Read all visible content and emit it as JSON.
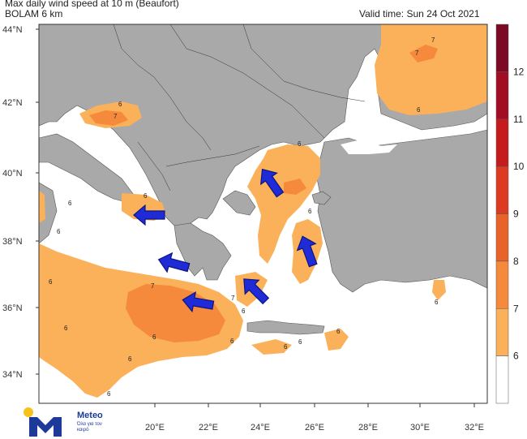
{
  "header": {
    "title": "Max daily wind speed at 10 m (Beaufort)",
    "model": "BOLAM 6 km",
    "valid_time": "Valid time: Sun 24 Oct 2021"
  },
  "axes": {
    "lat_labels": [
      "44°N",
      "42°N",
      "40°N",
      "38°N",
      "36°N",
      "34°N"
    ],
    "lon_labels": [
      "20°E",
      "22°E",
      "24°E",
      "26°E",
      "28°E",
      "30°E",
      "32°E"
    ]
  },
  "colorbar": {
    "levels": [
      "6",
      "7",
      "8",
      "9",
      "10",
      "11",
      "12"
    ],
    "colors": [
      "#ffffff",
      "#fbb05a",
      "#f58a3c",
      "#e9622a",
      "#dd3b21",
      "#c61b1d",
      "#a30d24",
      "#7d0a24"
    ]
  },
  "contour_labels": [
    "6",
    "7",
    "6",
    "7",
    "6",
    "6",
    "6",
    "6",
    "6",
    "6",
    "7",
    "7",
    "6",
    "6",
    "6",
    "6",
    "6",
    "6",
    "6",
    "7",
    "6",
    "6",
    "6"
  ],
  "colors": {
    "land": "#a9a9a9",
    "sea": "#ffffff",
    "wind6": "#fbb05a",
    "wind7": "#f58a3c",
    "arrow": "#1f2bd6",
    "border": "#333333"
  },
  "logo": {
    "name": "Meteo",
    "tagline": "Όλα για τον καιρό"
  },
  "arrows_icon": "wind-direction-arrow-icon"
}
